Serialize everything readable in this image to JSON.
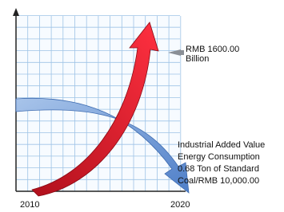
{
  "axis_labels": {
    "start": "2010",
    "end": "2020"
  },
  "annotations": [
    {
      "lines": [
        "RMB 1600.00",
        "Billion"
      ]
    },
    {
      "lines": [
        "Industrial Added Value",
        "Energy Consumption",
        "0.68 Ton of Standard",
        "Coal/RMB 10,000.00"
      ]
    }
  ]
}
